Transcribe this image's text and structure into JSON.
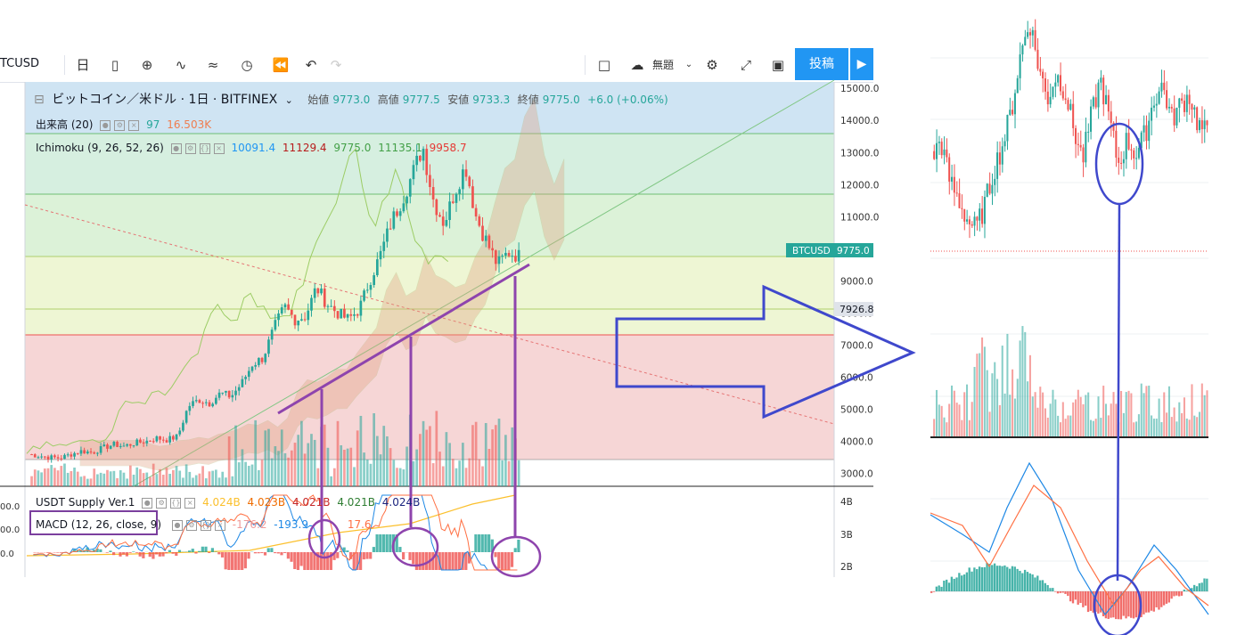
{
  "toolbar": {
    "symbol": "TCUSD",
    "interval": "日",
    "cloud_label": "無題",
    "post_label": "投稿"
  },
  "legend": {
    "main_title": "ビットコイン／米ドル · 1日 · BITFINEX",
    "open_label": "始値",
    "open": "9773.0",
    "high_label": "高値",
    "high": "9777.5",
    "low_label": "安値",
    "low": "9733.3",
    "close_label": "終値",
    "close": "9775.0",
    "change": "+6.0 (+0.06%)",
    "volume_label": "出来高 (20)",
    "volume_a": "97",
    "volume_b": "16.503K",
    "ichimoku_label": "Ichimoku (9, 26, 52, 26)",
    "ichimoku_values": [
      "10091.4",
      "11129.4",
      "9775.0",
      "11135.1",
      "9958.7"
    ],
    "usdt_label": "USDT Supply Ver.1",
    "usdt_values": [
      "4.024B",
      "4.023B",
      "4.021B",
      "4.021B",
      "4.024B"
    ],
    "macd_label": "MACD (12, 26, close, 9)",
    "macd_values": [
      "-176.2",
      "-193.9",
      "17.6"
    ]
  },
  "colors": {
    "up": "#26a69a",
    "down": "#ef5350",
    "annotation_purple": "#8e44ad",
    "arrow_blue": "#3f48cc",
    "price_badge": "#26a69a"
  },
  "chart_data": {
    "type": "candlestick",
    "symbol": "BTCUSD",
    "exchange": "BITFINEX",
    "timeframe": "1日",
    "last_price": 9775.0,
    "marker_price": 7926.8,
    "price_axis_ticks": [
      "15000.0",
      "14000.0",
      "13000.0",
      "12000.0",
      "11000.0",
      "9000.0",
      "8000.0",
      "7000.0",
      "6000.0",
      "5000.0",
      "4000.0",
      "3000.0"
    ],
    "usdt_axis_ticks": [
      "4B",
      "3B",
      "2B"
    ],
    "macd_axis_ticks": [
      "00.0",
      "00.0",
      "0.0"
    ],
    "ylim": [
      2600,
      15200
    ],
    "fib_levels": [
      13400,
      11500,
      9550,
      8400,
      7100,
      3200
    ],
    "price_path": [
      3600,
      3550,
      3500,
      3480,
      3600,
      3700,
      3650,
      3800,
      3900,
      3850,
      3950,
      4000,
      4100,
      4050,
      4150,
      5100,
      5300,
      5200,
      5500,
      5400,
      5800,
      6400,
      6600,
      7500,
      8200,
      7800,
      7900,
      8800,
      8300,
      8000,
      7800,
      8100,
      9000,
      9800,
      10800,
      11500,
      12300,
      13200,
      11500,
      10800,
      11800,
      12600,
      11000,
      10200,
      9500,
      9900,
      9775
    ],
    "zoom_price_path": [
      11800,
      12200,
      11400,
      11000,
      10600,
      10400,
      10900,
      11600,
      12100,
      12800,
      13900,
      14600,
      13700,
      13000,
      13500,
      13200,
      12400,
      11800,
      12700,
      13400,
      12600,
      11700,
      12200,
      11900,
      12300,
      13000,
      13300,
      12600,
      12900,
      13100,
      12500,
      12300
    ]
  }
}
